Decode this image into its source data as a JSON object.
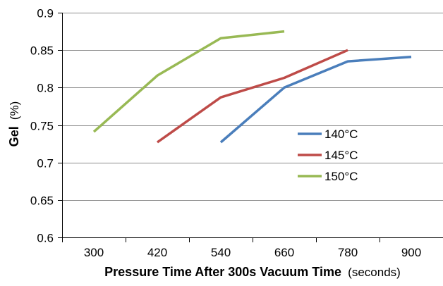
{
  "chart_data": {
    "type": "line",
    "title": "",
    "xlabel": {
      "main": "Pressure Time After 300s Vacuum Time",
      "unit": "(seconds)"
    },
    "ylabel": {
      "main": "Gel",
      "unit": "(%)"
    },
    "x": [
      300,
      420,
      540,
      660,
      780,
      900
    ],
    "x_tick_labels": [
      "300",
      "420",
      "540",
      "660",
      "780",
      "900"
    ],
    "xlim": [
      240,
      960
    ],
    "ylim": [
      0.6,
      0.9
    ],
    "y_ticks": [
      0.6,
      0.65,
      0.7,
      0.75,
      0.8,
      0.85,
      0.9
    ],
    "y_tick_labels": [
      "0.6",
      "0.65",
      "0.7",
      "0.75",
      "0.8",
      "0.85",
      "0.9"
    ],
    "grid": true,
    "legend_position": "right",
    "series": [
      {
        "name": "140°C",
        "color": "#4a7ebb",
        "points": [
          [
            540,
            0.727
          ],
          [
            660,
            0.8
          ],
          [
            780,
            0.835
          ],
          [
            900,
            0.841
          ]
        ]
      },
      {
        "name": "145°C",
        "color": "#be4b48",
        "points": [
          [
            420,
            0.727
          ],
          [
            540,
            0.787
          ],
          [
            660,
            0.813
          ],
          [
            780,
            0.85
          ]
        ]
      },
      {
        "name": "150°C",
        "color": "#98b954",
        "points": [
          [
            300,
            0.741
          ],
          [
            420,
            0.816
          ],
          [
            540,
            0.866
          ],
          [
            660,
            0.875
          ]
        ]
      }
    ],
    "grid_color": "#8c8c8c",
    "axis_color": "#000000"
  }
}
